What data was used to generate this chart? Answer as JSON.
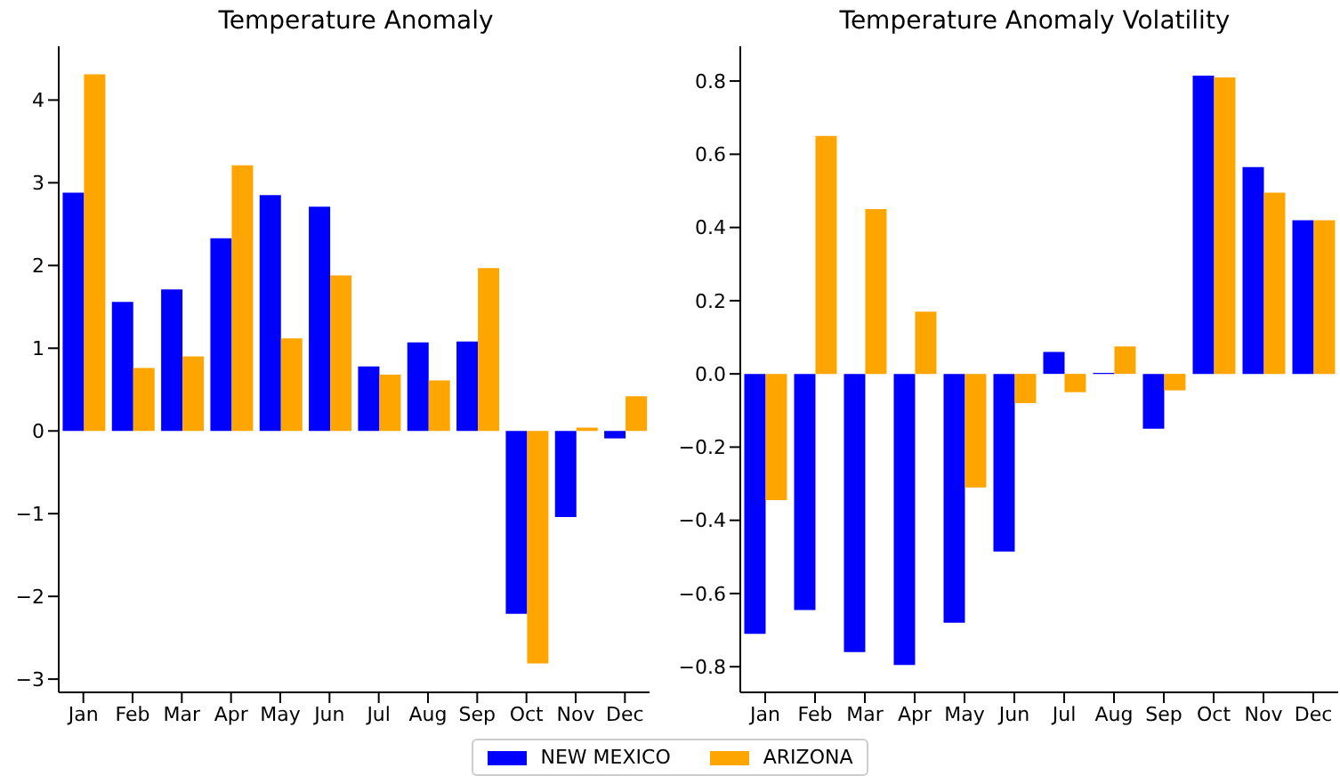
{
  "chart_data": [
    {
      "type": "bar",
      "title": "Temperature Anomaly",
      "categories": [
        "Jan",
        "Feb",
        "Mar",
        "Apr",
        "May",
        "Jun",
        "Jul",
        "Aug",
        "Sep",
        "Oct",
        "Nov",
        "Dec"
      ],
      "series": [
        {
          "name": "NEW MEXICO",
          "color": "#0000ff",
          "values": [
            2.88,
            1.56,
            1.71,
            2.33,
            2.85,
            2.71,
            0.78,
            1.07,
            1.08,
            -2.21,
            -1.04,
            -0.09
          ]
        },
        {
          "name": "ARIZONA",
          "color": "#ffa500",
          "values": [
            4.31,
            0.76,
            0.9,
            3.21,
            1.12,
            1.88,
            0.68,
            0.61,
            1.97,
            -2.81,
            0.04,
            0.42
          ]
        }
      ],
      "ylim": [
        -3.16,
        4.65
      ],
      "yticks": [
        {
          "value": -3,
          "label": "−3"
        },
        {
          "value": -2,
          "label": "−2"
        },
        {
          "value": -1,
          "label": "−1"
        },
        0,
        1,
        2,
        3,
        4
      ],
      "grid": false,
      "legend": "bottom"
    },
    {
      "type": "bar",
      "title": "Temperature Anomaly Volatility",
      "categories": [
        "Jan",
        "Feb",
        "Mar",
        "Apr",
        "May",
        "Jun",
        "Jul",
        "Aug",
        "Sep",
        "Oct",
        "Nov",
        "Dec"
      ],
      "series": [
        {
          "name": "NEW MEXICO",
          "color": "#0000ff",
          "values": [
            -0.71,
            -0.645,
            -0.76,
            -0.795,
            -0.68,
            -0.485,
            0.06,
            0.003,
            -0.15,
            0.815,
            0.565,
            0.42
          ]
        },
        {
          "name": "ARIZONA",
          "color": "#ffa500",
          "values": [
            -0.345,
            0.65,
            0.45,
            0.17,
            -0.31,
            -0.08,
            -0.05,
            0.075,
            -0.045,
            0.81,
            0.495,
            0.42
          ]
        }
      ],
      "ylim": [
        -0.87,
        0.895
      ],
      "yticks": [
        {
          "value": -0.8,
          "label": "−0.8"
        },
        {
          "value": -0.6,
          "label": "−0.6"
        },
        {
          "value": -0.4,
          "label": "−0.4"
        },
        {
          "value": -0.2,
          "label": "−0.2"
        },
        {
          "value": 0,
          "label": "0.0"
        },
        0.2,
        0.4,
        0.6,
        0.8
      ],
      "grid": false
    }
  ]
}
